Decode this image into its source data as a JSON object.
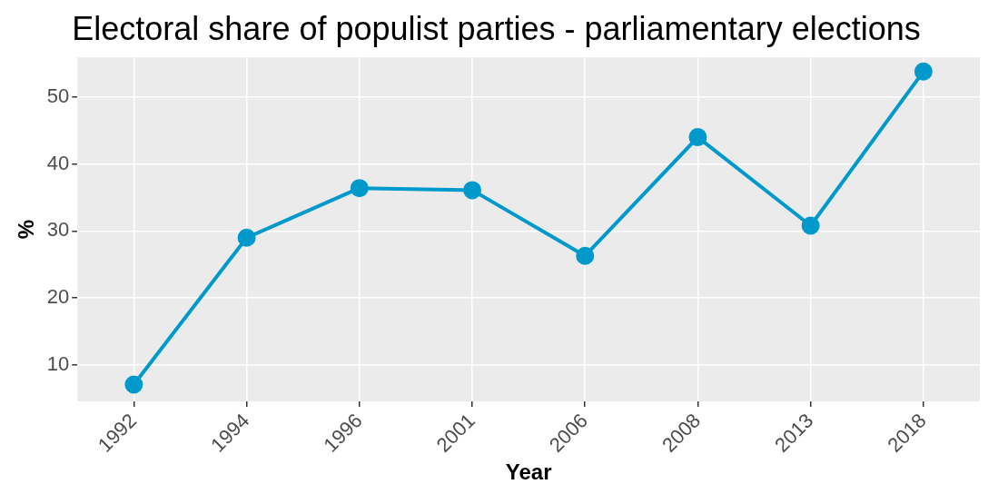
{
  "chart_data": {
    "type": "line",
    "title": "Electoral share of populist parties - parliamentary elections",
    "xlabel": "Year",
    "ylabel": "%",
    "categories": [
      "1992",
      "1994",
      "1996",
      "2001",
      "2006",
      "2008",
      "2013",
      "2018"
    ],
    "series": [
      {
        "color": "#0099cc",
        "values": [
          7.1,
          29.0,
          36.4,
          36.1,
          26.3,
          44.0,
          30.8,
          53.8
        ]
      }
    ],
    "ylim": [
      4.6,
      55.9
    ],
    "yticks": [
      10,
      20,
      30,
      40,
      50
    ],
    "grid": true,
    "legend": false,
    "marker": "circle",
    "line_style": "solid"
  }
}
